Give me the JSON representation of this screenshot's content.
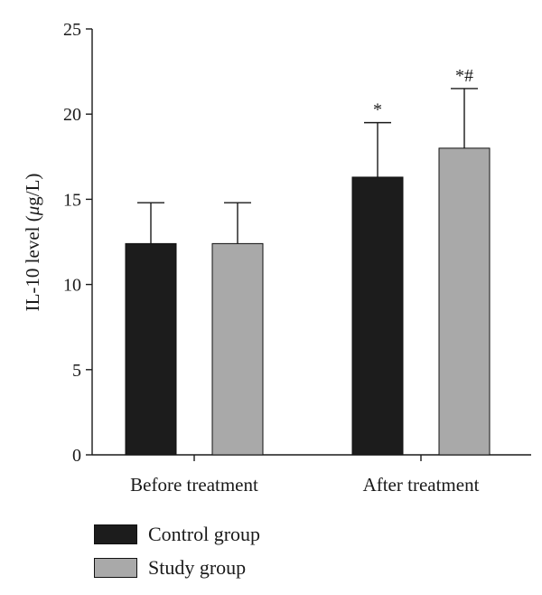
{
  "chart_data": {
    "type": "bar",
    "categories": [
      "Before treatment",
      "After treatment"
    ],
    "series": [
      {
        "name": "Control group",
        "values": [
          12.4,
          16.3
        ],
        "errors": [
          2.4,
          3.2
        ],
        "color": "#1c1c1c",
        "annotations": [
          "",
          "*"
        ]
      },
      {
        "name": "Study group",
        "values": [
          12.4,
          18.0
        ],
        "errors": [
          2.4,
          3.5
        ],
        "color": "#a9a9a9",
        "annotations": [
          "",
          "*#"
        ]
      }
    ],
    "ylabel": "IL-10 level (μg/L)",
    "ylabel_parts": {
      "before": "IL-10 level (",
      "italic": "μ",
      "after": "g/L)"
    },
    "ylim": [
      0,
      25
    ],
    "yticks": [
      0,
      5,
      10,
      15,
      20,
      25
    ],
    "grid": false,
    "legend_position": "bottom-left"
  }
}
